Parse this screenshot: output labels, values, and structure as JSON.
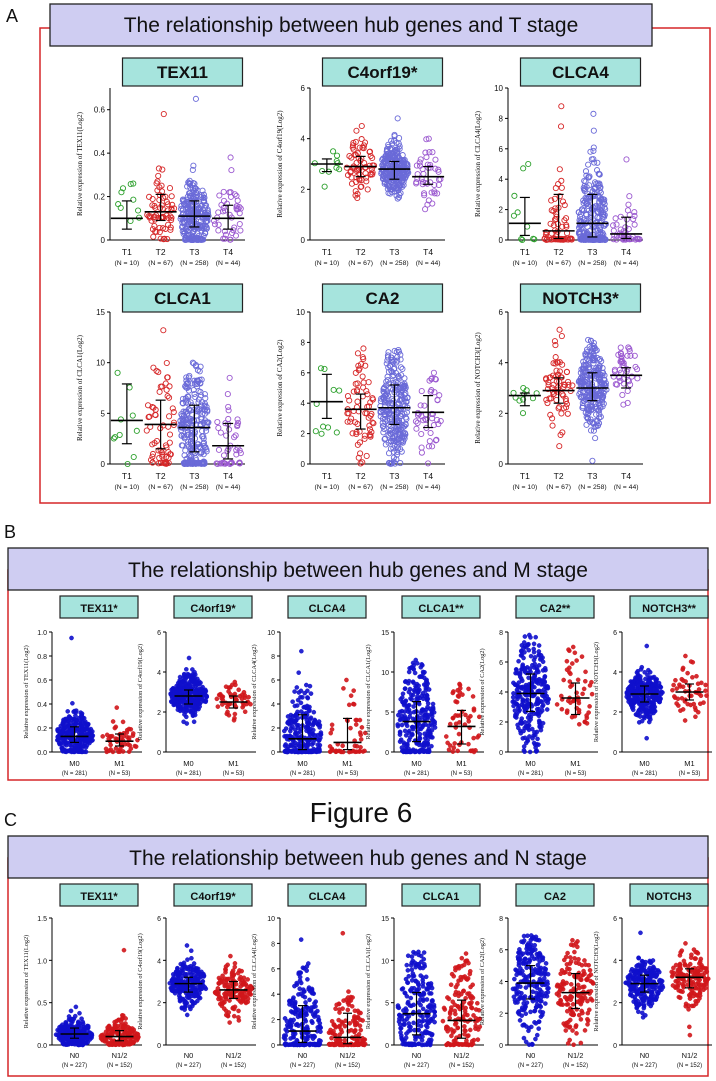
{
  "figure_caption": "Figure 6",
  "colors": {
    "panel_border": "#d62728",
    "header_bg": "#cfcdf2",
    "subtitle_bg": "#a6e4dd",
    "T1": "#2ca02c",
    "T2": "#d62728",
    "T3": "#6a6ad8",
    "T4": "#9b59d0",
    "M0": "#1010cc",
    "M1": "#d0161b",
    "N0": "#1010cc",
    "N1/2": "#d0161b"
  },
  "panels": [
    {
      "letter": "A",
      "title": "The relationship between hub genes and T stage",
      "chart_data": [
        {
          "type": "scatter",
          "gene": "TEX11",
          "star": "",
          "ylabel": "Relative expression of TEX11(Log2)",
          "ylim": [
            0,
            0.7
          ],
          "yticks": [
            0,
            0.2,
            0.4,
            0.6
          ],
          "yticklabels": [
            "0",
            "0.2",
            "0.4",
            "0.6"
          ],
          "groups": [
            {
              "name": "T1",
              "n": "(N = 10)",
              "median": 0.1,
              "q1": 0.05,
              "q3": 0.18,
              "max": 0.26
            },
            {
              "name": "T2",
              "n": "(N = 67)",
              "median": 0.13,
              "q1": 0.09,
              "q3": 0.21,
              "max": 0.58
            },
            {
              "name": "T3",
              "n": "(N = 258)",
              "median": 0.11,
              "q1": 0.06,
              "q3": 0.18,
              "max": 0.65
            },
            {
              "name": "T4",
              "n": "(N = 44)",
              "median": 0.1,
              "q1": 0.05,
              "q3": 0.16,
              "max": 0.38
            }
          ]
        },
        {
          "type": "scatter",
          "gene": "C4orf19",
          "star": "*",
          "ylabel": "Relative expression of C4orf19(Log2)",
          "ylim": [
            0,
            6
          ],
          "yticks": [
            0,
            2,
            4,
            6
          ],
          "yticklabels": [
            "0",
            "2",
            "4",
            "6"
          ],
          "groups": [
            {
              "name": "T1",
              "n": "(N = 10)",
              "median": 3.0,
              "q1": 2.7,
              "q3": 3.2,
              "max": 3.5
            },
            {
              "name": "T2",
              "n": "(N = 67)",
              "median": 2.9,
              "q1": 2.5,
              "q3": 3.3,
              "max": 4.5
            },
            {
              "name": "T3",
              "n": "(N = 258)",
              "median": 2.8,
              "q1": 2.4,
              "q3": 3.1,
              "max": 4.8
            },
            {
              "name": "T4",
              "n": "(N = 44)",
              "median": 2.5,
              "q1": 2.2,
              "q3": 2.9,
              "max": 4.0
            }
          ]
        },
        {
          "type": "scatter",
          "gene": "CLCA4",
          "star": "",
          "ylabel": "Relative expression of CLCA4(Log2)",
          "ylim": [
            0,
            10
          ],
          "yticks": [
            0,
            2,
            4,
            6,
            8,
            10
          ],
          "yticklabels": [
            "0",
            "2",
            "4",
            "6",
            "8",
            "10"
          ],
          "groups": [
            {
              "name": "T1",
              "n": "(N = 10)",
              "median": 1.1,
              "q1": 0.3,
              "q3": 2.8,
              "max": 5.0
            },
            {
              "name": "T2",
              "n": "(N = 67)",
              "median": 0.6,
              "q1": 0.1,
              "q3": 3.0,
              "max": 8.8
            },
            {
              "name": "T3",
              "n": "(N = 258)",
              "median": 1.1,
              "q1": 0.2,
              "q3": 3.0,
              "max": 8.3
            },
            {
              "name": "T4",
              "n": "(N = 44)",
              "median": 0.4,
              "q1": 0.1,
              "q3": 1.5,
              "max": 5.3
            }
          ]
        },
        {
          "type": "scatter",
          "gene": "CLCA1",
          "star": "",
          "ylabel": "Relative expression of CLCA1(Log2)",
          "ylim": [
            0,
            15
          ],
          "yticks": [
            0,
            5,
            10,
            15
          ],
          "yticklabels": [
            "0",
            "5",
            "10",
            "15"
          ],
          "groups": [
            {
              "name": "T1",
              "n": "(N = 10)",
              "median": 4.3,
              "q1": 2.0,
              "q3": 7.9,
              "max": 9.0
            },
            {
              "name": "T2",
              "n": "(N = 67)",
              "median": 3.9,
              "q1": 1.5,
              "q3": 6.3,
              "max": 13.2
            },
            {
              "name": "T3",
              "n": "(N = 258)",
              "median": 3.6,
              "q1": 1.2,
              "q3": 5.8,
              "max": 10.0
            },
            {
              "name": "T4",
              "n": "(N = 44)",
              "median": 1.8,
              "q1": 0.5,
              "q3": 4.0,
              "max": 8.5
            }
          ]
        },
        {
          "type": "scatter",
          "gene": "CA2",
          "star": "",
          "ylabel": "Relative expression of CA2(Log2)",
          "ylim": [
            0,
            10
          ],
          "yticks": [
            0,
            2,
            4,
            6,
            8,
            10
          ],
          "yticklabels": [
            "0",
            "2",
            "4",
            "6",
            "8",
            "10"
          ],
          "groups": [
            {
              "name": "T1",
              "n": "(N = 10)",
              "median": 4.1,
              "q1": 3.0,
              "q3": 5.9,
              "max": 6.3
            },
            {
              "name": "T2",
              "n": "(N = 67)",
              "median": 3.6,
              "q1": 2.3,
              "q3": 4.6,
              "max": 7.6
            },
            {
              "name": "T3",
              "n": "(N = 258)",
              "median": 3.7,
              "q1": 2.6,
              "q3": 5.2,
              "max": 7.5
            },
            {
              "name": "T4",
              "n": "(N = 44)",
              "median": 3.4,
              "q1": 2.4,
              "q3": 4.5,
              "max": 6.0
            }
          ]
        },
        {
          "type": "scatter",
          "gene": "NOTCH3",
          "star": "*",
          "ylabel": "Relative expression of NOTCH3(Log2)",
          "ylim": [
            0,
            6
          ],
          "yticks": [
            0,
            2,
            4,
            6
          ],
          "yticklabels": [
            "0",
            "2",
            "4",
            "6"
          ],
          "groups": [
            {
              "name": "T1",
              "n": "(N = 10)",
              "median": 2.7,
              "q1": 2.3,
              "q3": 2.8,
              "max": 3.0
            },
            {
              "name": "T2",
              "n": "(N = 67)",
              "median": 2.9,
              "q1": 2.4,
              "q3": 3.4,
              "max": 5.3
            },
            {
              "name": "T3",
              "n": "(N = 258)",
              "median": 3.0,
              "q1": 2.5,
              "q3": 3.6,
              "max": 4.9
            },
            {
              "name": "T4",
              "n": "(N = 44)",
              "median": 3.5,
              "q1": 3.0,
              "q3": 3.8,
              "max": 4.6
            }
          ]
        }
      ]
    },
    {
      "letter": "B",
      "title": "The relationship between hub genes and M stage",
      "chart_data": [
        {
          "type": "scatter",
          "gene": "TEX11",
          "star": "*",
          "ylabel": "Relative expression of TEX11(Log2)",
          "ylim": [
            0,
            1.0
          ],
          "yticks": [
            0,
            0.2,
            0.4,
            0.6,
            0.8,
            1.0
          ],
          "yticklabels": [
            "0.0",
            "0.2",
            "0.4",
            "0.6",
            "0.8",
            "1.0"
          ],
          "groups": [
            {
              "name": "M0",
              "n": "(N = 281)",
              "median": 0.13,
              "q1": 0.08,
              "q3": 0.21,
              "max": 0.95
            },
            {
              "name": "M1",
              "n": "(N = 53)",
              "median": 0.09,
              "q1": 0.05,
              "q3": 0.15,
              "max": 0.37
            }
          ]
        },
        {
          "type": "scatter",
          "gene": "C4orf19",
          "star": "*",
          "ylabel": "Relative expression of C4orf19(Log2)",
          "ylim": [
            0,
            6
          ],
          "yticks": [
            0,
            2,
            4,
            6
          ],
          "yticklabels": [
            "0",
            "2",
            "4",
            "6"
          ],
          "groups": [
            {
              "name": "M0",
              "n": "(N = 281)",
              "median": 2.8,
              "q1": 2.4,
              "q3": 3.1,
              "max": 4.7
            },
            {
              "name": "M1",
              "n": "(N = 53)",
              "median": 2.5,
              "q1": 2.2,
              "q3": 2.8,
              "max": 3.5
            }
          ]
        },
        {
          "type": "scatter",
          "gene": "CLCA4",
          "star": "",
          "ylabel": "Relative expression of CLCA4(Log2)",
          "ylim": [
            0,
            10
          ],
          "yticks": [
            0,
            2,
            4,
            6,
            8,
            10
          ],
          "yticklabels": [
            "0",
            "2",
            "4",
            "6",
            "8",
            "10"
          ],
          "groups": [
            {
              "name": "M0",
              "n": "(N = 281)",
              "median": 1.1,
              "q1": 0.2,
              "q3": 3.1,
              "max": 8.4
            },
            {
              "name": "M1",
              "n": "(N = 53)",
              "median": 0.8,
              "q1": 0.2,
              "q3": 2.8,
              "max": 6.0
            }
          ]
        },
        {
          "type": "scatter",
          "gene": "CLCA1",
          "star": "**",
          "ylabel": "Relative expression of CLCA1(Log2)",
          "ylim": [
            0,
            15
          ],
          "yticks": [
            0,
            5,
            10,
            15
          ],
          "yticklabels": [
            "0",
            "5",
            "10",
            "15"
          ],
          "groups": [
            {
              "name": "M0",
              "n": "(N = 281)",
              "median": 3.8,
              "q1": 1.3,
              "q3": 6.3,
              "max": 11.5
            },
            {
              "name": "M1",
              "n": "(N = 53)",
              "median": 3.2,
              "q1": 1.0,
              "q3": 5.2,
              "max": 8.5
            }
          ]
        },
        {
          "type": "scatter",
          "gene": "CA2",
          "star": "**",
          "ylabel": "Relative expression of CA2(Log2)",
          "ylim": [
            0,
            8
          ],
          "yticks": [
            0,
            2,
            4,
            6,
            8
          ],
          "yticklabels": [
            "0",
            "2",
            "4",
            "6",
            "8"
          ],
          "groups": [
            {
              "name": "M0",
              "n": "(N = 281)",
              "median": 3.9,
              "q1": 2.7,
              "q3": 5.2,
              "max": 7.8
            },
            {
              "name": "M1",
              "n": "(N = 53)",
              "median": 3.6,
              "q1": 2.5,
              "q3": 4.6,
              "max": 7.0
            }
          ]
        },
        {
          "type": "scatter",
          "gene": "NOTCH3",
          "star": "**",
          "ylabel": "Relative expression of NOTCH3(Log2)",
          "ylim": [
            0,
            6
          ],
          "yticks": [
            0,
            2,
            4,
            6
          ],
          "yticklabels": [
            "0",
            "2",
            "4",
            "6"
          ],
          "groups": [
            {
              "name": "M0",
              "n": "(N = 281)",
              "median": 2.9,
              "q1": 2.5,
              "q3": 3.3,
              "max": 5.3
            },
            {
              "name": "M1",
              "n": "(N = 53)",
              "median": 3.0,
              "q1": 2.6,
              "q3": 3.4,
              "max": 4.8
            }
          ]
        }
      ]
    },
    {
      "letter": "C",
      "title": "The relationship between hub genes and N stage",
      "chart_data": [
        {
          "type": "scatter",
          "gene": "TEX11",
          "star": "*",
          "ylabel": "Relative expression of TEX11(Log2)",
          "ylim": [
            0,
            1.5
          ],
          "yticks": [
            0,
            0.5,
            1.0,
            1.5
          ],
          "yticklabels": [
            "0.0",
            "0.5",
            "1.0",
            "1.5"
          ],
          "groups": [
            {
              "name": "N0",
              "n": "(N = 227)",
              "median": 0.13,
              "q1": 0.08,
              "q3": 0.2,
              "max": 0.45
            },
            {
              "name": "N1/2",
              "n": "(N = 152)",
              "median": 0.1,
              "q1": 0.05,
              "q3": 0.17,
              "max": 1.12
            }
          ]
        },
        {
          "type": "scatter",
          "gene": "C4orf19",
          "star": "*",
          "ylabel": "Relative expression of C4orf19(Log2)",
          "ylim": [
            0,
            6
          ],
          "yticks": [
            0,
            2,
            4,
            6
          ],
          "yticklabels": [
            "0",
            "2",
            "4",
            "6"
          ],
          "groups": [
            {
              "name": "N0",
              "n": "(N = 227)",
              "median": 2.9,
              "q1": 2.5,
              "q3": 3.2,
              "max": 4.7
            },
            {
              "name": "N1/2",
              "n": "(N = 152)",
              "median": 2.6,
              "q1": 2.2,
              "q3": 3.0,
              "max": 4.2
            }
          ]
        },
        {
          "type": "scatter",
          "gene": "CLCA4",
          "star": "",
          "ylabel": "Relative expression of CLCA4(Log2)",
          "ylim": [
            0,
            10
          ],
          "yticks": [
            0,
            2,
            4,
            6,
            8,
            10
          ],
          "yticklabels": [
            "0",
            "2",
            "4",
            "6",
            "8",
            "10"
          ],
          "groups": [
            {
              "name": "N0",
              "n": "(N = 227)",
              "median": 1.1,
              "q1": 0.2,
              "q3": 3.1,
              "max": 8.3
            },
            {
              "name": "N1/2",
              "n": "(N = 152)",
              "median": 0.6,
              "q1": 0.1,
              "q3": 2.5,
              "max": 8.8
            }
          ]
        },
        {
          "type": "scatter",
          "gene": "CLCA1",
          "star": "",
          "ylabel": "Relative expression of CLCA1(Log2)",
          "ylim": [
            0,
            15
          ],
          "yticks": [
            0,
            5,
            10,
            15
          ],
          "yticklabels": [
            "0",
            "5",
            "10",
            "15"
          ],
          "groups": [
            {
              "name": "N0",
              "n": "(N = 227)",
              "median": 3.7,
              "q1": 1.2,
              "q3": 6.2,
              "max": 11.0
            },
            {
              "name": "N1/2",
              "n": "(N = 152)",
              "median": 2.9,
              "q1": 0.8,
              "q3": 5.3,
              "max": 10.8
            }
          ]
        },
        {
          "type": "scatter",
          "gene": "CA2",
          "star": "",
          "ylabel": "Relative expression of CA2(Log2)",
          "ylim": [
            0,
            8
          ],
          "yticks": [
            0,
            2,
            4,
            6,
            8
          ],
          "yticklabels": [
            "0",
            "2",
            "4",
            "6",
            "8"
          ],
          "groups": [
            {
              "name": "N0",
              "n": "(N = 227)",
              "median": 3.9,
              "q1": 2.9,
              "q3": 5.0,
              "max": 6.9
            },
            {
              "name": "N1/2",
              "n": "(N = 152)",
              "median": 3.3,
              "q1": 2.3,
              "q3": 4.5,
              "max": 6.6
            }
          ]
        },
        {
          "type": "scatter",
          "gene": "NOTCH3",
          "star": "",
          "ylabel": "Relative expression of NOTCH3(Log2)",
          "ylim": [
            0,
            6
          ],
          "yticks": [
            0,
            2,
            4,
            6
          ],
          "yticklabels": [
            "0",
            "2",
            "4",
            "6"
          ],
          "groups": [
            {
              "name": "N0",
              "n": "(N = 227)",
              "median": 2.9,
              "q1": 2.5,
              "q3": 3.3,
              "max": 5.3
            },
            {
              "name": "N1/2",
              "n": "(N = 152)",
              "median": 3.2,
              "q1": 2.7,
              "q3": 3.6,
              "max": 4.8
            }
          ]
        }
      ]
    }
  ]
}
